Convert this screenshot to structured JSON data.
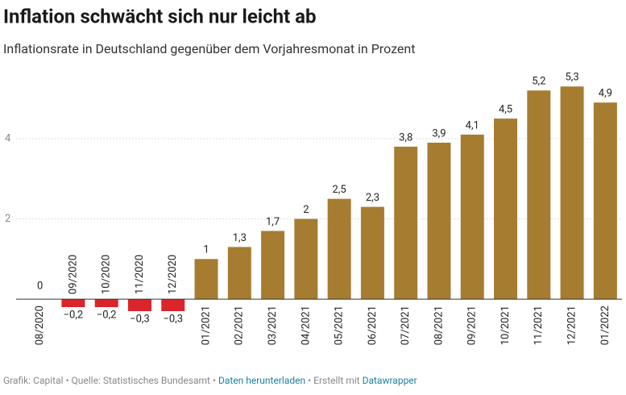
{
  "chart_data": {
    "type": "bar",
    "title": "Inflation schwächt sich nur leicht ab",
    "subtitle": "Inflationsrate in Deutschland gegenüber dem Vorjahresmonat in Prozent",
    "categories": [
      "08/2020",
      "09/2020",
      "10/2020",
      "11/2020",
      "12/2020",
      "01/2021",
      "02/2021",
      "03/2021",
      "04/2021",
      "05/2021",
      "06/2021",
      "07/2021",
      "08/2021",
      "09/2021",
      "10/2021",
      "11/2021",
      "12/2021",
      "01/2022"
    ],
    "values": [
      0,
      -0.2,
      -0.2,
      -0.3,
      -0.3,
      1,
      1.3,
      1.7,
      2,
      2.5,
      2.3,
      3.8,
      3.9,
      4.1,
      4.5,
      5.2,
      5.3,
      4.9
    ],
    "value_labels": [
      "0",
      "−0,2",
      "−0,2",
      "−0,3",
      "−0,3",
      "1",
      "1,3",
      "1,7",
      "2",
      "2,5",
      "2,3",
      "3,8",
      "3,9",
      "4,1",
      "4,5",
      "5,2",
      "5,3",
      "4,9"
    ],
    "positive_color": "#a67c30",
    "negative_color": "#d9252b",
    "ylim": [
      -0.3,
      5.3
    ],
    "yticks": [
      2,
      4
    ],
    "grid": true,
    "footer": {
      "credit": "Grafik: Capital",
      "source": "Quelle: Statistisches Bundesamt",
      "download": "Daten herunterladen",
      "made_with": "Erstellt mit",
      "tool": "Datawrapper"
    }
  }
}
